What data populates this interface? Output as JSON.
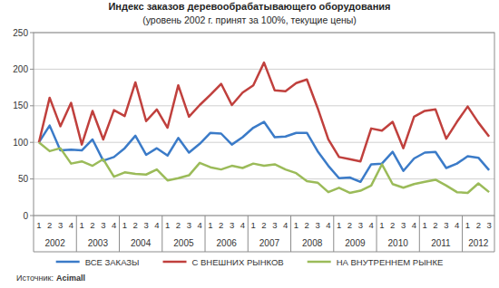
{
  "chart_data": {
    "type": "line",
    "title": "Индекс заказов деревообрабатывающего оборудования",
    "subtitle": "(уровень 2002 г. принят за 100%, текущие цены)",
    "source": {
      "label": "Источник:",
      "name": "Acimall"
    },
    "categories": [
      "1",
      "2",
      "3",
      "4",
      "1",
      "2",
      "3",
      "4",
      "1",
      "2",
      "3",
      "4",
      "1",
      "2",
      "3",
      "4",
      "1",
      "2",
      "3",
      "4",
      "1",
      "2",
      "3",
      "4",
      "1",
      "2",
      "3",
      "4",
      "1",
      "2",
      "3",
      "4",
      "1",
      "2",
      "3",
      "4",
      "1",
      "2",
      "3",
      "4",
      "1",
      "2",
      "3"
    ],
    "category_groups": [
      {
        "label": "2002",
        "size": 4
      },
      {
        "label": "2003",
        "size": 4
      },
      {
        "label": "2004",
        "size": 4
      },
      {
        "label": "2005",
        "size": 4
      },
      {
        "label": "2006",
        "size": 4
      },
      {
        "label": "2007",
        "size": 4
      },
      {
        "label": "2008",
        "size": 4
      },
      {
        "label": "2009",
        "size": 4
      },
      {
        "label": "2010",
        "size": 4
      },
      {
        "label": "2011",
        "size": 4
      },
      {
        "label": "2012",
        "size": 3
      }
    ],
    "series": [
      {
        "name": "ВСЕ ЗАКАЗЫ",
        "color": "#3b7bc8",
        "values": [
          100,
          123,
          89,
          90,
          89,
          104,
          75,
          80,
          92,
          109,
          83,
          92,
          82,
          106,
          86,
          98,
          113,
          112,
          97,
          107,
          120,
          128,
          107,
          108,
          113,
          113,
          88,
          68,
          51,
          52,
          46,
          70,
          71,
          87,
          61,
          78,
          86,
          87,
          65,
          71,
          81,
          79,
          62
        ]
      },
      {
        "name": "С ВНЕШНИХ РЫНКОВ",
        "color": "#c0403d",
        "values": [
          100,
          161,
          122,
          154,
          97,
          143,
          104,
          144,
          136,
          182,
          129,
          145,
          120,
          178,
          135,
          151,
          165,
          180,
          151,
          168,
          178,
          209,
          171,
          170,
          181,
          186,
          147,
          104,
          80,
          77,
          74,
          119,
          116,
          128,
          92,
          135,
          143,
          145,
          105,
          128,
          149,
          127,
          108
        ]
      },
      {
        "name": "НА ВНУТРЕННЕМ РЫНКЕ",
        "color": "#9bbb59",
        "values": [
          100,
          88,
          92,
          71,
          74,
          68,
          77,
          53,
          59,
          57,
          56,
          63,
          48,
          51,
          55,
          72,
          66,
          63,
          68,
          65,
          71,
          68,
          70,
          63,
          58,
          47,
          45,
          32,
          38,
          31,
          34,
          41,
          70,
          43,
          38,
          43,
          46,
          49,
          41,
          32,
          31,
          44,
          32
        ]
      }
    ],
    "ylim": [
      0,
      250
    ],
    "yticks": [
      0,
      50,
      100,
      150,
      200,
      250
    ],
    "grid": true,
    "legend": "bottom"
  }
}
